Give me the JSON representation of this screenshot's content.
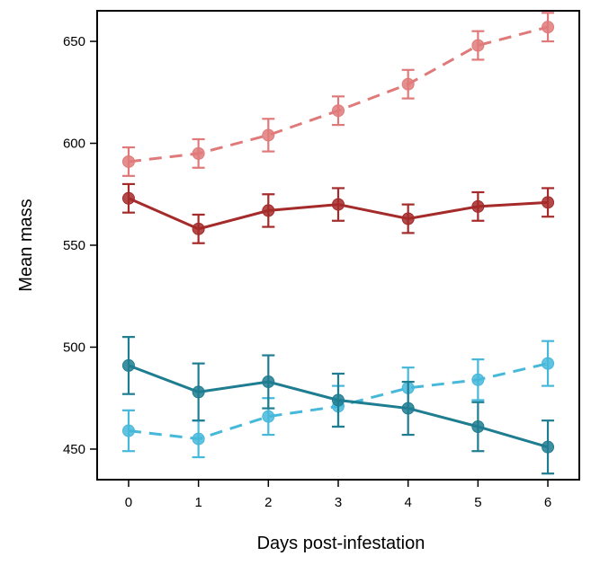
{
  "chart_data": {
    "type": "line",
    "title": "",
    "xlabel": "Days post-infestation",
    "ylabel": "Mean mass",
    "x": [
      0,
      1,
      2,
      3,
      4,
      5,
      6
    ],
    "xticks": [
      "0",
      "1",
      "2",
      "3",
      "4",
      "5",
      "6"
    ],
    "yticks": [
      "450",
      "500",
      "550",
      "600",
      "650"
    ],
    "xlim": [
      -0.45,
      6.45
    ],
    "ylim": [
      435,
      665
    ],
    "grid": false,
    "legend": "none",
    "series": [
      {
        "color": "#e07a7a",
        "dash": true,
        "values": [
          591,
          595,
          604,
          616,
          629,
          648,
          657
        ],
        "errors": [
          7,
          7,
          8,
          7,
          7,
          7,
          7
        ]
      },
      {
        "color": "#a52a2a",
        "dash": false,
        "values": [
          573,
          558,
          567,
          570,
          563,
          569,
          571
        ],
        "errors": [
          7,
          7,
          8,
          8,
          7,
          7,
          7
        ]
      },
      {
        "color": "#46b8da",
        "dash": true,
        "values": [
          459,
          455,
          466,
          471,
          480,
          484,
          492
        ],
        "errors": [
          10,
          9,
          9,
          10,
          10,
          10,
          11
        ]
      },
      {
        "color": "#1e7d90",
        "dash": false,
        "values": [
          491,
          478,
          483,
          474,
          470,
          461,
          451
        ],
        "errors": [
          14,
          14,
          13,
          13,
          13,
          12,
          13
        ]
      }
    ]
  }
}
